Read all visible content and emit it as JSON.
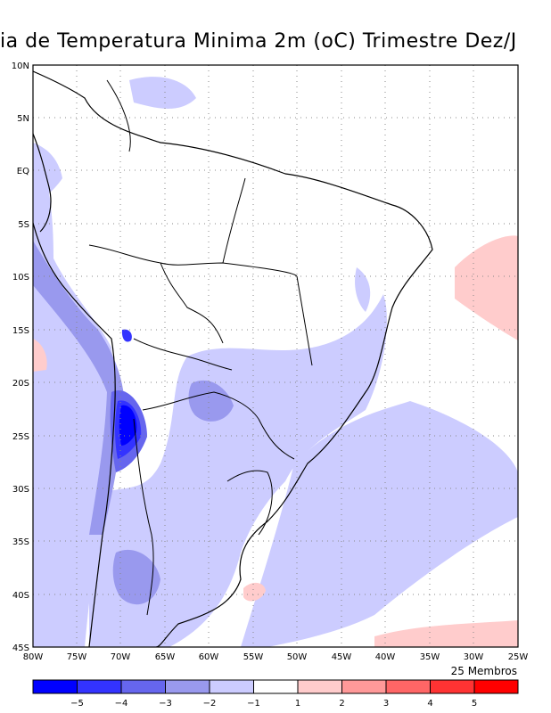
{
  "title": "ia de Temperatura Minima 2m (oC) Trimestre Dez/J",
  "lat_labels": [
    "10N",
    "5N",
    "EQ",
    "5S",
    "10S",
    "15S",
    "20S",
    "25S",
    "30S",
    "35S",
    "40S",
    "45S"
  ],
  "lon_labels": [
    "80W",
    "75W",
    "70W",
    "65W",
    "60W",
    "55W",
    "50W",
    "45W",
    "40W",
    "35W",
    "30W",
    "25W"
  ],
  "members_label": "25 Membros",
  "colorbar": {
    "labels": [
      "−5",
      "−4",
      "−3",
      "−2",
      "−1",
      "1",
      "2",
      "3",
      "4",
      "5"
    ],
    "colors": [
      "#0000ff",
      "#3333ff",
      "#6666ee",
      "#9999ee",
      "#ccccff",
      "#ffffff",
      "#ffcccc",
      "#ff9999",
      "#ff6666",
      "#ff3333",
      "#ff0000"
    ]
  },
  "map_colors": {
    "anom_neg1": "#ccccff",
    "anom_neg2": "#9999ee",
    "anom_neg3": "#6666ee",
    "anom_neg4": "#3333ff",
    "anom_neg5": "#0000ff",
    "anom_pos1": "#ffcccc"
  }
}
